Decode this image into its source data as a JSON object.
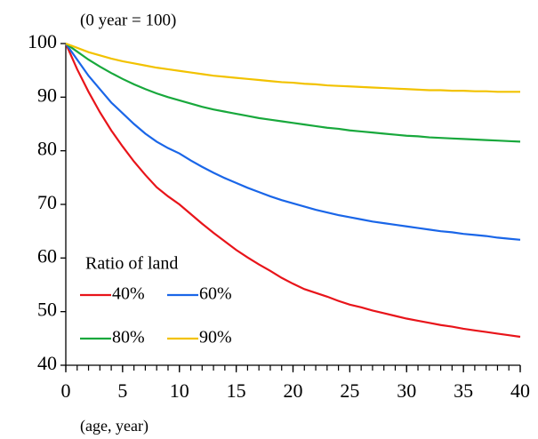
{
  "chart_data": {
    "type": "line",
    "subtitle": "(0 year = 100)",
    "x_label": "(age, year)",
    "legend_title": "Ratio of land",
    "x": [
      0,
      1,
      2,
      3,
      4,
      5,
      6,
      7,
      8,
      9,
      10,
      11,
      12,
      13,
      14,
      15,
      16,
      17,
      18,
      19,
      20,
      21,
      22,
      23,
      24,
      25,
      26,
      27,
      28,
      29,
      30,
      31,
      32,
      33,
      34,
      35,
      36,
      37,
      38,
      39,
      40
    ],
    "series": [
      {
        "name": "40%",
        "color": "#e8141a",
        "values": [
          100,
          95.2,
          91,
          87.2,
          83.8,
          80.8,
          78,
          75.5,
          73.2,
          71.5,
          70,
          68.2,
          66.4,
          64.7,
          63.1,
          61.5,
          60.1,
          58.8,
          57.6,
          56.3,
          55.2,
          54.2,
          53.5,
          52.8,
          52,
          51.3,
          50.8,
          50.2,
          49.7,
          49.2,
          48.7,
          48.3,
          47.9,
          47.5,
          47.2,
          46.8,
          46.5,
          46.2,
          45.9,
          45.6,
          45.3
        ]
      },
      {
        "name": "60%",
        "color": "#1a66e8",
        "values": [
          100,
          97,
          94,
          91.5,
          89,
          87,
          85,
          83.2,
          81.7,
          80.5,
          79.5,
          78.2,
          77,
          75.9,
          74.9,
          74,
          73.1,
          72.3,
          71.5,
          70.8,
          70.2,
          69.6,
          69,
          68.5,
          68,
          67.6,
          67.2,
          66.8,
          66.5,
          66.2,
          65.9,
          65.6,
          65.3,
          65,
          64.8,
          64.5,
          64.3,
          64.1,
          63.8,
          63.6,
          63.4
        ]
      },
      {
        "name": "80%",
        "color": "#18a83c",
        "values": [
          100,
          98.5,
          97,
          95.7,
          94.5,
          93.4,
          92.4,
          91.5,
          90.7,
          90,
          89.4,
          88.8,
          88.2,
          87.7,
          87.3,
          86.9,
          86.5,
          86.1,
          85.8,
          85.5,
          85.2,
          84.9,
          84.6,
          84.3,
          84.1,
          83.8,
          83.6,
          83.4,
          83.2,
          83,
          82.8,
          82.7,
          82.5,
          82.4,
          82.3,
          82.2,
          82.1,
          82,
          81.9,
          81.8,
          81.7
        ]
      },
      {
        "name": "90%",
        "color": "#f2c200",
        "values": [
          100,
          99.2,
          98.4,
          97.8,
          97.2,
          96.7,
          96.3,
          95.9,
          95.5,
          95.2,
          94.9,
          94.6,
          94.3,
          94,
          93.8,
          93.6,
          93.4,
          93.2,
          93,
          92.8,
          92.7,
          92.5,
          92.4,
          92.2,
          92.1,
          92,
          91.9,
          91.8,
          91.7,
          91.6,
          91.5,
          91.4,
          91.3,
          91.3,
          91.2,
          91.2,
          91.1,
          91.1,
          91,
          91,
          91
        ]
      }
    ],
    "xlim": [
      0,
      40
    ],
    "xticks": [
      0,
      5,
      10,
      15,
      20,
      25,
      30,
      35,
      40
    ],
    "ylim": [
      40,
      100
    ],
    "yticks": [
      40,
      50,
      60,
      70,
      80,
      90,
      100
    ],
    "grid": false
  }
}
